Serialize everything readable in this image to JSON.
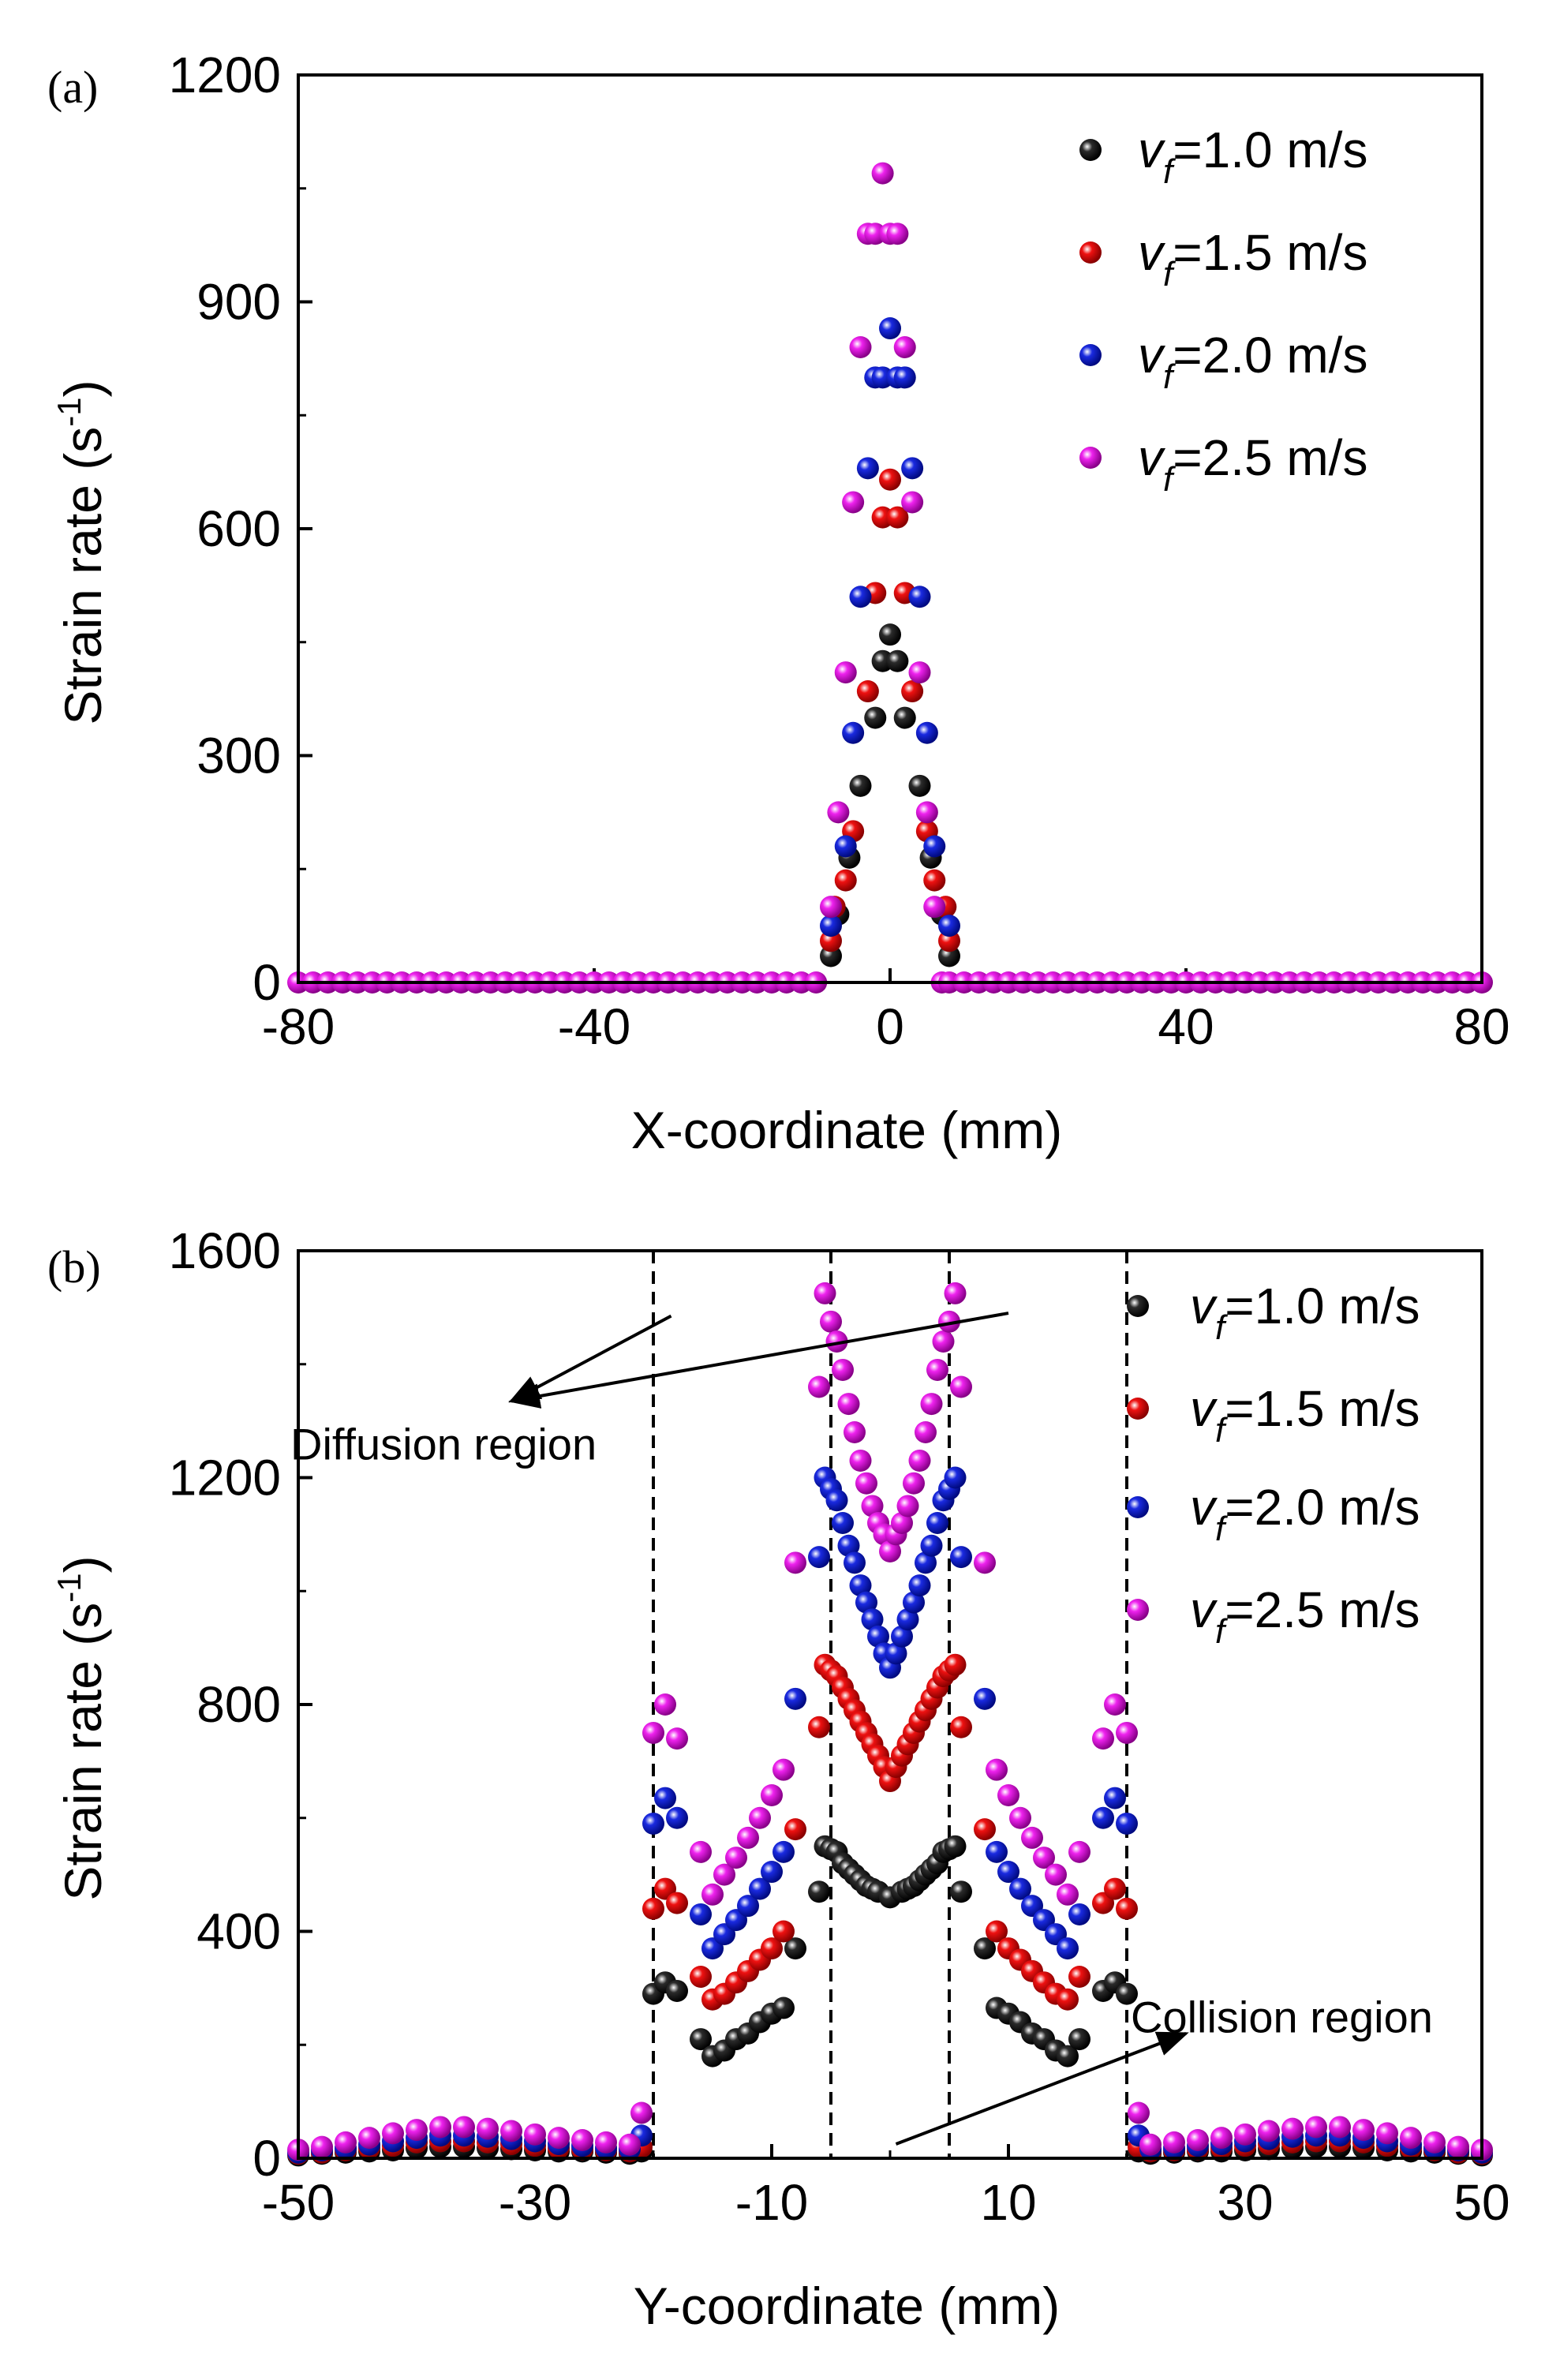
{
  "chart_data": [
    {
      "type": "scatter",
      "panel_label": "(a)",
      "xlabel": "X-coordinate (mm)",
      "ylabel": "Strain rate (s",
      "ylabel_sup": "-1",
      "ylabel_close": ")",
      "xlim": [
        -80,
        80
      ],
      "ylim": [
        0,
        1200
      ],
      "xticks": [
        -80,
        -40,
        0,
        40,
        80
      ],
      "xtick_labels": [
        "-80",
        "-40",
        "0",
        "40",
        "80"
      ],
      "yticks": [
        0,
        300,
        600,
        900,
        1200
      ],
      "ytick_labels": [
        "0",
        "300",
        "600",
        "900",
        "1200"
      ],
      "legend_position": "top-right",
      "series": [
        {
          "name": "v_f=1.0 m/s",
          "legend_var": "v",
          "legend_sub": "f",
          "legend_rest": "=1.0 m/s",
          "color": "#2b2b2b",
          "x": [
            -8,
            -7,
            -5.5,
            -4,
            -2,
            -1,
            0,
            1,
            2,
            4,
            5.5,
            7,
            8
          ],
          "y": [
            35,
            90,
            165,
            260,
            350,
            425,
            460,
            425,
            350,
            260,
            165,
            90,
            35
          ]
        },
        {
          "name": "v_f=1.5 m/s",
          "legend_var": "v",
          "legend_sub": "f",
          "legend_rest": "=1.5 m/s",
          "color": "#ee1111",
          "x": [
            -8,
            -7.5,
            -6,
            -5,
            -3,
            -2,
            -1,
            0,
            1,
            2,
            3,
            5,
            6,
            7.5,
            8
          ],
          "y": [
            55,
            100,
            135,
            200,
            385,
            515,
            615,
            665,
            615,
            515,
            385,
            200,
            135,
            100,
            55
          ]
        },
        {
          "name": "v_f=2.0 m/s",
          "legend_var": "v",
          "legend_sub": "f",
          "legend_rest": "=2.0 m/s",
          "color": "#1a2ae0",
          "x": [
            -8,
            -6,
            -5,
            -4,
            -3,
            -2,
            -1,
            0,
            1,
            2,
            3,
            4,
            5,
            6,
            8
          ],
          "y": [
            75,
            180,
            330,
            510,
            680,
            800,
            800,
            865,
            800,
            800,
            680,
            510,
            330,
            180,
            75
          ]
        },
        {
          "name": "v_f=2.5 m/s",
          "legend_var": "v",
          "legend_sub": "f",
          "legend_rest": "=2.5 m/s",
          "color": "#ee22ee",
          "x": [
            -80,
            -78,
            -76,
            -74,
            -72,
            -70,
            -68,
            -66,
            -64,
            -62,
            -60,
            -58,
            -56,
            -54,
            -52,
            -50,
            -48,
            -46,
            -44,
            -42,
            -40,
            -38,
            -36,
            -34,
            -32,
            -30,
            -28,
            -26,
            -24,
            -22,
            -20,
            -18,
            -16,
            -14,
            -12,
            -10,
            -8,
            -7,
            -6,
            -5,
            -4,
            -3,
            -2,
            -1,
            0,
            1,
            2,
            3,
            4,
            5,
            6,
            7,
            8,
            10,
            12,
            14,
            16,
            18,
            20,
            22,
            24,
            26,
            28,
            30,
            32,
            34,
            36,
            38,
            40,
            42,
            44,
            46,
            48,
            50,
            52,
            54,
            56,
            58,
            60,
            62,
            64,
            66,
            68,
            70,
            72,
            74,
            76,
            78,
            80
          ],
          "y": [
            0,
            0,
            0,
            0,
            0,
            0,
            0,
            0,
            0,
            0,
            0,
            0,
            0,
            0,
            0,
            0,
            0,
            0,
            0,
            0,
            0,
            0,
            0,
            0,
            0,
            0,
            0,
            0,
            0,
            0,
            0,
            0,
            0,
            0,
            0,
            0,
            100,
            225,
            410,
            635,
            840,
            990,
            990,
            1070,
            990,
            990,
            840,
            635,
            410,
            225,
            100,
            0,
            0,
            0,
            0,
            0,
            0,
            0,
            0,
            0,
            0,
            0,
            0,
            0,
            0,
            0,
            0,
            0,
            0,
            0,
            0,
            0,
            0,
            0,
            0,
            0,
            0,
            0,
            0,
            0,
            0,
            0,
            0,
            0,
            0,
            0,
            0,
            0,
            0
          ]
        }
      ]
    },
    {
      "type": "scatter",
      "panel_label": "(b)",
      "xlabel": "Y-coordinate (mm)",
      "ylabel": "Strain rate (s",
      "ylabel_sup": "-1",
      "ylabel_close": ")",
      "xlim": [
        -50,
        50
      ],
      "ylim": [
        0,
        1600
      ],
      "xticks": [
        -50,
        -30,
        -10,
        10,
        30,
        50
      ],
      "xtick_labels": [
        "-50",
        "-30",
        "-10",
        "10",
        "30",
        "50"
      ],
      "yticks": [
        0,
        400,
        800,
        1200,
        1600
      ],
      "ytick_labels": [
        "0",
        "400",
        "800",
        "1200",
        "1600"
      ],
      "legend_position": "top-right",
      "vlines": [
        -20,
        -5,
        5,
        20
      ],
      "annotations": [
        {
          "text": "Diffusion region",
          "label_at": [
            -50,
            1260
          ],
          "arrows": [
            {
              "from": [
                -18.5,
                1485
              ],
              "to": [
                -32,
                1335
              ]
            },
            {
              "from": [
                10,
                1490
              ],
              "to": [
                -32,
                1335
              ]
            }
          ]
        },
        {
          "text": "Collision region",
          "label_at": [
            21,
            250
          ],
          "arrows": [
            {
              "from": [
                0.5,
                25
              ],
              "to": [
                25,
                220
              ]
            }
          ]
        }
      ],
      "series": [
        {
          "name": "v_f=1.0 m/s",
          "legend_var": "v",
          "legend_sub": "f",
          "legend_rest": "=1.0 m/s",
          "color": "#2b2b2b",
          "x": [
            -50,
            -48,
            -46,
            -44,
            -42,
            -40,
            -38,
            -36,
            -34,
            -32,
            -30,
            -28,
            -26,
            -24,
            -22,
            -21,
            -20,
            -19,
            -18,
            -16,
            -15,
            -14,
            -13,
            -12,
            -11,
            -10,
            -9,
            -8,
            -6,
            -5.5,
            -5,
            -4.5,
            -4,
            -3.5,
            -3,
            -2.5,
            -2,
            -1.5,
            -1,
            0,
            1,
            1.5,
            2,
            2.5,
            3,
            3.5,
            4,
            4.5,
            5,
            5.5,
            6,
            8,
            9,
            10,
            11,
            12,
            13,
            14,
            15,
            16,
            18,
            19,
            20,
            21,
            22,
            24,
            26,
            28,
            30,
            32,
            34,
            36,
            38,
            40,
            42,
            44,
            46,
            48,
            50
          ],
          "y": [
            5,
            8,
            10,
            12,
            14,
            18,
            20,
            20,
            18,
            16,
            14,
            12,
            12,
            10,
            8,
            12,
            290,
            310,
            295,
            210,
            180,
            190,
            210,
            220,
            240,
            255,
            265,
            370,
            470,
            550,
            545,
            540,
            520,
            510,
            500,
            490,
            480,
            475,
            470,
            460,
            470,
            475,
            480,
            490,
            500,
            510,
            520,
            540,
            545,
            550,
            470,
            370,
            265,
            255,
            240,
            220,
            210,
            190,
            180,
            210,
            295,
            310,
            290,
            12,
            8,
            10,
            12,
            12,
            14,
            16,
            18,
            20,
            20,
            18,
            14,
            12,
            10,
            8,
            5
          ]
        },
        {
          "name": "v_f=1.5 m/s",
          "legend_var": "v",
          "legend_sub": "f",
          "legend_rest": "=1.5 m/s",
          "color": "#ee1111",
          "x": [
            -50,
            -48,
            -46,
            -44,
            -42,
            -40,
            -38,
            -36,
            -34,
            -32,
            -30,
            -28,
            -26,
            -24,
            -22,
            -21,
            -20,
            -19,
            -18,
            -16,
            -15,
            -14,
            -13,
            -12,
            -11,
            -10,
            -9,
            -8,
            -6,
            -5.5,
            -5,
            -4.5,
            -4,
            -3.5,
            -3,
            -2.5,
            -2,
            -1.5,
            -1,
            -0.5,
            0,
            0.5,
            1,
            1.5,
            2,
            2.5,
            3,
            3.5,
            4,
            4.5,
            5,
            5.5,
            6,
            8,
            9,
            10,
            11,
            12,
            13,
            14,
            15,
            16,
            18,
            19,
            20,
            21,
            22,
            24,
            26,
            28,
            30,
            32,
            34,
            36,
            38,
            40,
            42,
            44,
            46,
            48,
            50
          ],
          "y": [
            8,
            10,
            14,
            18,
            22,
            28,
            30,
            30,
            28,
            25,
            22,
            18,
            16,
            14,
            12,
            20,
            440,
            475,
            450,
            320,
            280,
            290,
            310,
            330,
            350,
            370,
            400,
            580,
            760,
            870,
            860,
            850,
            830,
            810,
            790,
            770,
            750,
            730,
            710,
            690,
            665,
            690,
            710,
            730,
            750,
            770,
            790,
            810,
            830,
            850,
            860,
            870,
            760,
            580,
            400,
            370,
            350,
            330,
            310,
            290,
            280,
            320,
            450,
            475,
            440,
            20,
            12,
            14,
            16,
            18,
            22,
            25,
            28,
            30,
            30,
            28,
            22,
            18,
            14,
            10,
            8
          ]
        },
        {
          "name": "v_f=2.0 m/s",
          "legend_var": "v",
          "legend_sub": "f",
          "legend_rest": "=2.0 m/s",
          "color": "#1a2ae0",
          "x": [
            -50,
            -48,
            -46,
            -44,
            -42,
            -40,
            -38,
            -36,
            -34,
            -32,
            -30,
            -28,
            -26,
            -24,
            -22,
            -21,
            -20,
            -19,
            -18,
            -16,
            -15,
            -14,
            -13,
            -12,
            -11,
            -10,
            -9,
            -8,
            -6,
            -5.5,
            -5,
            -4.5,
            -4,
            -3.5,
            -3,
            -2.5,
            -2,
            -1.5,
            -1,
            -0.5,
            0,
            0.5,
            1,
            1.5,
            2,
            2.5,
            3,
            3.5,
            4,
            4.5,
            5,
            5.5,
            6,
            8,
            9,
            10,
            11,
            12,
            13,
            14,
            15,
            16,
            18,
            19,
            20,
            21,
            22,
            24,
            26,
            28,
            30,
            32,
            34,
            36,
            38,
            40,
            42,
            44,
            46,
            48,
            50
          ],
          "y": [
            10,
            14,
            18,
            24,
            30,
            36,
            40,
            40,
            38,
            34,
            30,
            25,
            22,
            18,
            16,
            40,
            590,
            635,
            600,
            430,
            370,
            395,
            420,
            445,
            475,
            505,
            540,
            810,
            1060,
            1200,
            1180,
            1160,
            1120,
            1080,
            1050,
            1010,
            980,
            950,
            920,
            890,
            865,
            890,
            920,
            950,
            980,
            1010,
            1050,
            1080,
            1120,
            1160,
            1180,
            1200,
            1060,
            810,
            540,
            505,
            475,
            445,
            420,
            395,
            370,
            430,
            600,
            635,
            590,
            40,
            16,
            18,
            22,
            25,
            30,
            34,
            38,
            40,
            40,
            36,
            30,
            24,
            18,
            14,
            10
          ]
        },
        {
          "name": "v_f=2.5 m/s",
          "legend_var": "v",
          "legend_sub": "f",
          "legend_rest": "=2.5 m/s",
          "color": "#ee22ee",
          "x": [
            -50,
            -48,
            -46,
            -44,
            -42,
            -40,
            -38,
            -36,
            -34,
            -32,
            -30,
            -28,
            -26,
            -24,
            -22,
            -21,
            -20,
            -19,
            -18,
            -16,
            -15,
            -14,
            -13,
            -12,
            -11,
            -10,
            -9,
            -8,
            -6,
            -5.5,
            -5,
            -4.5,
            -4,
            -3.5,
            -3,
            -2.5,
            -2,
            -1.5,
            -1,
            -0.5,
            0,
            0.5,
            1,
            1.5,
            2,
            2.5,
            3,
            3.5,
            4,
            4.5,
            5,
            5.5,
            6,
            8,
            9,
            10,
            11,
            12,
            13,
            14,
            15,
            16,
            18,
            19,
            20,
            21,
            22,
            24,
            26,
            28,
            30,
            32,
            34,
            36,
            38,
            40,
            42,
            44,
            46,
            48,
            50
          ],
          "y": [
            15,
            20,
            28,
            36,
            44,
            50,
            55,
            55,
            52,
            48,
            42,
            36,
            32,
            28,
            24,
            80,
            750,
            800,
            740,
            540,
            465,
            500,
            530,
            565,
            600,
            640,
            685,
            1050,
            1360,
            1525,
            1475,
            1440,
            1390,
            1330,
            1280,
            1230,
            1190,
            1150,
            1120,
            1100,
            1070,
            1100,
            1120,
            1150,
            1190,
            1230,
            1280,
            1330,
            1390,
            1440,
            1475,
            1525,
            1360,
            1050,
            685,
            640,
            600,
            565,
            530,
            500,
            465,
            540,
            740,
            800,
            750,
            80,
            24,
            28,
            32,
            36,
            42,
            48,
            52,
            55,
            55,
            50,
            44,
            36,
            28,
            20,
            15
          ]
        }
      ]
    }
  ]
}
